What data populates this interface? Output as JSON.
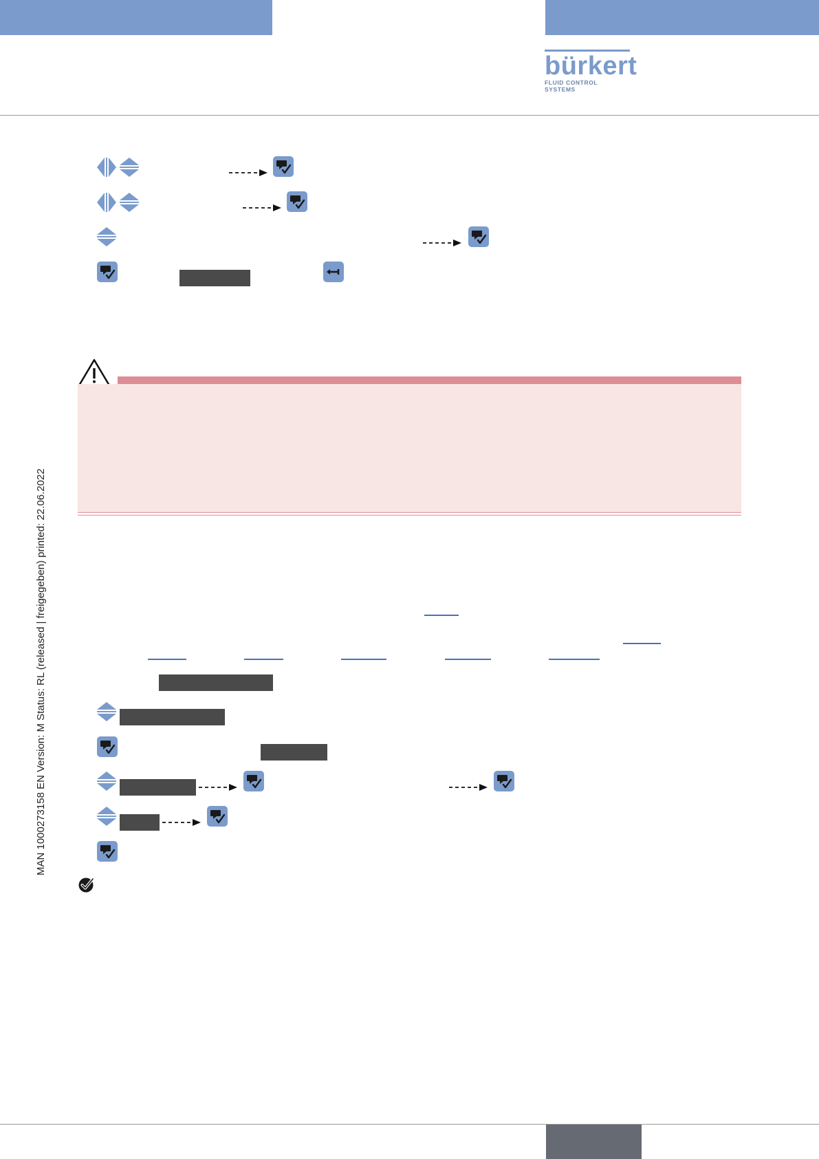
{
  "header": {
    "brand_name": "bürkert",
    "brand_tagline": "FLUID CONTROL SYSTEMS",
    "colors": {
      "band": "#7a9bcb",
      "rule": "#9a9a9a"
    }
  },
  "sidebar": {
    "document_info": "MAN  1000273158  EN  Version: M Status: RL (released | freigegeben)  printed: 22.06.2022"
  },
  "procedure_top": {
    "steps": [
      {
        "icons": [
          "left-right-arrows-icon",
          "up-down-arrows-icon",
          "dashed-arrow-icon",
          "enter-key-icon"
        ]
      },
      {
        "icons": [
          "left-right-arrows-icon",
          "up-down-arrows-icon",
          "dashed-arrow-icon",
          "enter-key-icon"
        ]
      },
      {
        "icons": [
          "up-down-arrows-icon",
          "dashed-arrow-icon",
          "enter-key-icon"
        ]
      },
      {
        "icons": [
          "enter-key-icon",
          "display-label",
          "back-key-icon"
        ]
      }
    ]
  },
  "warning": {
    "icon": "warning-triangle-icon",
    "colors": {
      "header": "#de8c96",
      "body": "#f8e6e4"
    }
  },
  "procedure_bottom": {
    "steps": [
      {
        "icons": [
          "display-label"
        ]
      },
      {
        "icons": [
          "up-down-arrows-icon",
          "display-label"
        ]
      },
      {
        "icons": [
          "enter-key-icon",
          "display-label"
        ]
      },
      {
        "icons": [
          "up-down-arrows-icon",
          "display-label",
          "dashed-arrow-icon",
          "enter-key-icon",
          "dashed-arrow-icon",
          "enter-key-icon"
        ]
      },
      {
        "icons": [
          "up-down-arrows-icon",
          "display-label",
          "dashed-arrow-icon",
          "enter-key-icon"
        ]
      },
      {
        "icons": [
          "enter-key-icon"
        ]
      }
    ],
    "result_icon": "check-circle-icon"
  },
  "footer": {
    "colors": {
      "tab": "#666b73"
    }
  }
}
